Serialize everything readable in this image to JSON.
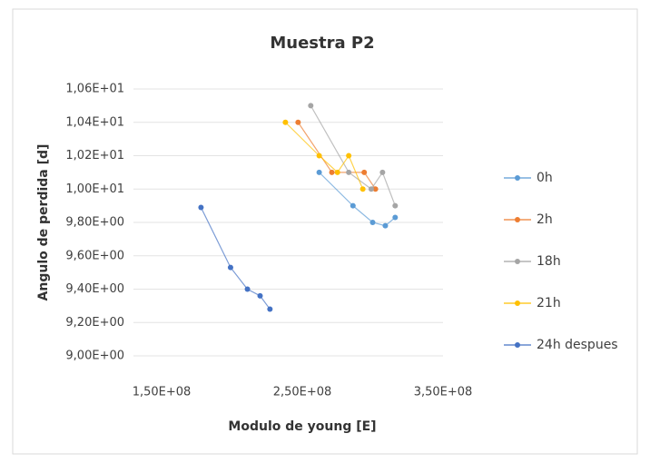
{
  "chart_data": {
    "type": "scatter",
    "title": "Muestra P2",
    "x_label": "Modulo de young [E]",
    "y_label": "Angulo de perdida [d]",
    "xlim": [
      130000000,
      350000000
    ],
    "xticks": [
      {
        "value": 150000000,
        "label": "1,50E+08"
      },
      {
        "value": 250000000,
        "label": "2,50E+08"
      },
      {
        "value": 350000000,
        "label": "3,50E+08"
      }
    ],
    "ylim": [
      9.0,
      10.6
    ],
    "yticks": [
      {
        "value": 9.0,
        "label": "9,00E+00"
      },
      {
        "value": 9.2,
        "label": "9,20E+00"
      },
      {
        "value": 9.4,
        "label": "9,40E+00"
      },
      {
        "value": 9.6,
        "label": "9,60E+00"
      },
      {
        "value": 9.8,
        "label": "9,80E+00"
      },
      {
        "value": 10.0,
        "label": "1,00E+01"
      },
      {
        "value": 10.2,
        "label": "1,02E+01"
      },
      {
        "value": 10.4,
        "label": "1,04E+01"
      },
      {
        "value": 10.6,
        "label": "1,06E+01"
      }
    ],
    "grid": true,
    "legend": "right",
    "series": [
      {
        "name": "0h",
        "color": "#5b9bd5",
        "x": [
          262000000,
          286000000,
          300000000,
          309000000,
          316000000
        ],
        "values": [
          10.1,
          9.9,
          9.8,
          9.78,
          9.83
        ]
      },
      {
        "name": "2h",
        "color": "#ed7d31",
        "x": [
          247000000,
          271000000,
          294000000,
          302000000
        ],
        "values": [
          10.4,
          10.1,
          10.1,
          10.0
        ]
      },
      {
        "name": "18h",
        "color": "#a5a5a5",
        "x": [
          256000000,
          283000000,
          299000000,
          307000000,
          316000000
        ],
        "values": [
          10.5,
          10.1,
          10.0,
          10.1,
          9.9
        ]
      },
      {
        "name": "21h",
        "color": "#ffc000",
        "x": [
          238000000,
          262000000,
          275000000,
          283000000,
          293000000
        ],
        "values": [
          10.4,
          10.2,
          10.1,
          10.2,
          10.0
        ]
      },
      {
        "name": "24h despues",
        "color": "#4472c4",
        "x": [
          178000000,
          199000000,
          211000000,
          220000000,
          227000000
        ],
        "values": [
          9.89,
          9.53,
          9.4,
          9.36,
          9.28
        ]
      }
    ]
  }
}
